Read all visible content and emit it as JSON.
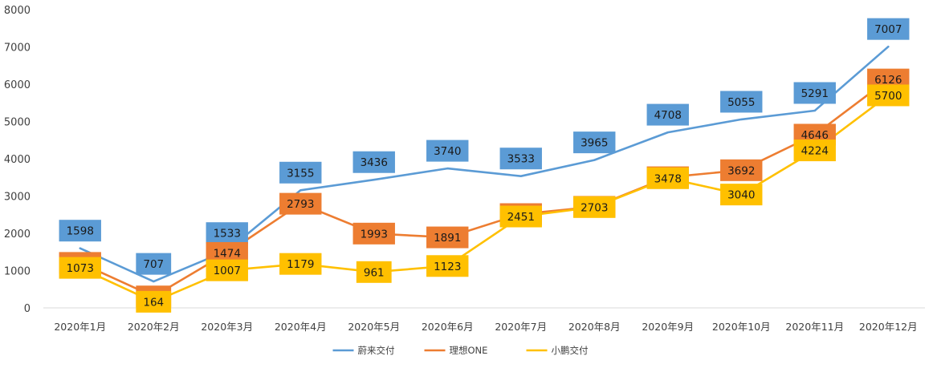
{
  "chart_data": {
    "type": "line",
    "title": "",
    "xlabel": "",
    "ylabel": "",
    "ylim": [
      0,
      8000
    ],
    "yticks": [
      0,
      1000,
      2000,
      3000,
      4000,
      5000,
      6000,
      7000,
      8000
    ],
    "grid": false,
    "legend_position": "bottom",
    "categories": [
      "2020年1月",
      "2020年2月",
      "2020年3月",
      "2020年4月",
      "2020年5月",
      "2020年6月",
      "2020年7月",
      "2020年8月",
      "2020年9月",
      "2020年10月",
      "2020年11月",
      "2020年12月"
    ],
    "series": [
      {
        "name": "蔚来交付",
        "color": "#5B9BD5",
        "values": [
          1598,
          707,
          1533,
          3155,
          3436,
          3740,
          3533,
          3965,
          4708,
          5055,
          5291,
          7007
        ]
      },
      {
        "name": "理想ONE",
        "color": "#ED7D31",
        "values": [
          1207,
          307,
          1474,
          2793,
          1993,
          1891,
          2516,
          2711,
          3504,
          3692,
          4646,
          6126
        ]
      },
      {
        "name": "小鹏交付",
        "color": "#FFC000",
        "values": [
          1073,
          164,
          1007,
          1179,
          961,
          1123,
          2451,
          2703,
          3478,
          3040,
          4224,
          5700
        ]
      }
    ]
  }
}
